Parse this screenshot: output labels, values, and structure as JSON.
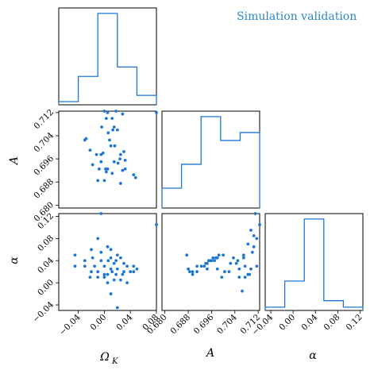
{
  "title": "Simulation validation",
  "accent_color": "#1f77d4",
  "chart_data": [
    {
      "type": "histogram",
      "parameter": "Ω_K",
      "bin_edges": [
        -0.07,
        -0.04,
        -0.01,
        0.02,
        0.05,
        0.08
      ],
      "counts": [
        1,
        9,
        29,
        12,
        3
      ],
      "xlim": [
        -0.07,
        0.08
      ]
    },
    {
      "type": "histogram",
      "parameter": "A",
      "bin_edges": [
        0.679,
        0.6857,
        0.6924,
        0.6991,
        0.7058,
        0.7125
      ],
      "counts": [
        5,
        11,
        23,
        17,
        19
      ],
      "xlim": [
        0.679,
        0.7125
      ]
    },
    {
      "type": "histogram",
      "parameter": "α",
      "bin_edges": [
        -0.05,
        -0.015,
        0.02,
        0.055,
        0.09,
        0.125
      ],
      "counts": [
        1,
        9,
        28,
        3,
        1
      ],
      "xlim": [
        -0.05,
        0.125
      ]
    },
    {
      "type": "scatter",
      "x_param": "Ω_K",
      "y_param": "A",
      "xlim": [
        -0.07,
        0.08
      ],
      "ylim": [
        0.679,
        0.7125
      ],
      "x": [
        -0.01,
        0.0,
        0.005,
        0.018,
        0.028,
        0.012,
        0.003,
        -0.004,
        0.015,
        0.02,
        0.013,
        0.006,
        -0.028,
        -0.03,
        -0.022,
        0.008,
        0.01,
        0.016,
        -0.002,
        -0.012,
        0.03,
        0.025,
        0.024,
        0.021,
        0.032,
        0.015,
        -0.005,
        0.002,
        0.005,
        -0.008,
        -0.018,
        0.028,
        0.032,
        0.003,
        0.012,
        0.045,
        0.048,
        -0.01,
        0.0,
        0.025,
        0.08,
        -0.005
      ],
      "y": [
        0.7135,
        0.7125,
        0.712,
        0.7125,
        0.7115,
        0.71,
        0.71,
        0.707,
        0.707,
        0.706,
        0.706,
        0.705,
        0.703,
        0.7025,
        0.699,
        0.7025,
        0.7005,
        0.7005,
        0.698,
        0.6975,
        0.6985,
        0.6975,
        0.696,
        0.6945,
        0.6955,
        0.695,
        0.695,
        0.6925,
        0.6925,
        0.6925,
        0.694,
        0.692,
        0.6925,
        0.6915,
        0.691,
        0.6905,
        0.6895,
        0.6885,
        0.6885,
        0.6875,
        0.712,
        0.6975
      ]
    },
    {
      "type": "scatter",
      "x_param": "Ω_K",
      "y_param": "α",
      "xlim": [
        -0.07,
        0.08
      ],
      "ylim": [
        -0.05,
        0.125
      ],
      "x": [
        -0.005,
        0.08,
        -0.02,
        -0.01,
        0.005,
        -0.005,
        0.01,
        0.02,
        0.01,
        0.018,
        -0.045,
        -0.03,
        -0.018,
        -0.005,
        0.006,
        0.015,
        0.025,
        0.03,
        0.035,
        0.045,
        0.05,
        -0.045,
        -0.03,
        -0.015,
        0.0,
        0.01,
        0.02,
        0.03,
        0.04,
        0.045,
        -0.02,
        -0.01,
        0.0,
        0.005,
        0.012,
        0.018,
        0.028,
        -0.022,
        -0.01,
        0.0,
        0.015,
        0.025,
        0.005,
        0.035,
        0.01,
        0.02
      ],
      "y": [
        0.125,
        0.105,
        0.06,
        0.08,
        0.065,
        0.055,
        0.06,
        0.05,
        0.045,
        0.04,
        0.05,
        0.04,
        0.045,
        0.04,
        0.04,
        0.035,
        0.045,
        0.035,
        0.03,
        0.03,
        0.025,
        0.03,
        0.03,
        0.03,
        0.03,
        0.025,
        0.025,
        0.02,
        0.02,
        0.02,
        0.02,
        0.02,
        0.015,
        0.015,
        0.02,
        0.015,
        0.015,
        0.01,
        0.01,
        0.01,
        0.005,
        0.005,
        0.0,
        0.0,
        -0.02,
        -0.045
      ]
    },
    {
      "type": "scatter",
      "x_param": "A",
      "y_param": "α",
      "xlim": [
        0.679,
        0.7125
      ],
      "ylim": [
        -0.05,
        0.125
      ],
      "x": [
        0.711,
        0.7125,
        0.7095,
        0.7105,
        0.7115,
        0.7085,
        0.7105,
        0.707,
        0.71,
        0.707,
        0.6985,
        0.7,
        0.698,
        0.6975,
        0.697,
        0.6965,
        0.696,
        0.6955,
        0.695,
        0.6945,
        0.694,
        0.6935,
        0.6925,
        0.691,
        0.6875,
        0.688,
        0.7035,
        0.705,
        0.7045,
        0.7025,
        0.7115,
        0.7075,
        0.7055,
        0.7095,
        0.702,
        0.6885,
        0.6895,
        0.691,
        0.6945,
        0.698,
        0.7005,
        0.7085,
        0.709,
        0.6895,
        0.7055,
        0.6995,
        0.7075,
        0.7065
      ],
      "y": [
        0.125,
        0.105,
        0.095,
        0.085,
        0.08,
        0.07,
        0.065,
        0.05,
        0.055,
        0.045,
        0.05,
        0.05,
        0.045,
        0.045,
        0.04,
        0.045,
        0.04,
        0.04,
        0.04,
        0.035,
        0.035,
        0.03,
        0.03,
        0.03,
        0.05,
        0.025,
        0.045,
        0.04,
        0.035,
        0.035,
        0.03,
        0.03,
        0.025,
        0.025,
        0.02,
        0.02,
        0.02,
        0.02,
        0.025,
        0.025,
        0.02,
        0.015,
        0.015,
        0.015,
        0.01,
        0.01,
        0.01,
        -0.015
      ]
    }
  ],
  "axis_labels": {
    "omega_k": "Ω",
    "omega_k_sub": "K",
    "a": "A",
    "alpha": "α"
  },
  "ticks": {
    "omega_k": [
      "−0.04",
      "0.00",
      "0.04",
      "0.08"
    ],
    "omega_k_values": [
      -0.04,
      0.0,
      0.04,
      0.08
    ],
    "a": [
      "0.680",
      "0.688",
      "0.696",
      "0.704",
      "0.712"
    ],
    "a_values": [
      0.68,
      0.688,
      0.696,
      0.704,
      0.712
    ],
    "alpha": [
      "−0.04",
      "0.00",
      "0.04",
      "0.08",
      "0.12"
    ],
    "alpha_values": [
      -0.04,
      0.0,
      0.04,
      0.08,
      0.12
    ]
  }
}
